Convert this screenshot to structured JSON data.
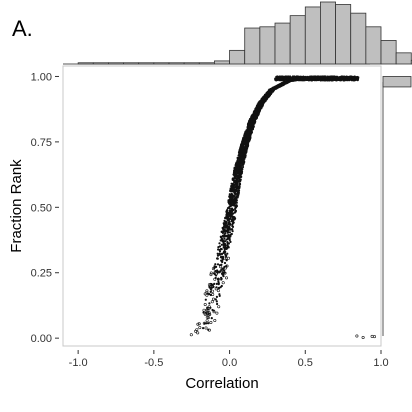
{
  "panel_label": "A.",
  "chart_data": {
    "type": "scatter",
    "xlabel": "Correlation",
    "ylabel": "Fraction Rank",
    "xlim": [
      -1.1,
      1.0
    ],
    "ylim": [
      -0.03,
      1.04
    ],
    "x_ticks": [
      -1.0,
      -0.5,
      0.0,
      0.5,
      1.0
    ],
    "x_tick_labels": [
      "-1.0",
      "-0.5",
      "0.0",
      "0.5",
      "1.0"
    ],
    "y_ticks": [
      0.0,
      0.25,
      0.5,
      0.75,
      1.0
    ],
    "y_tick_labels": [
      "0.00",
      "0.25",
      "0.50",
      "0.75",
      "1.00"
    ],
    "grid": false,
    "point_color": "#111111",
    "curve": [
      {
        "x": -0.2,
        "y": 0.01
      },
      {
        "x": -0.16,
        "y": 0.06
      },
      {
        "x": -0.12,
        "y": 0.13
      },
      {
        "x": -0.09,
        "y": 0.2
      },
      {
        "x": -0.06,
        "y": 0.28
      },
      {
        "x": -0.03,
        "y": 0.37
      },
      {
        "x": 0.0,
        "y": 0.45
      },
      {
        "x": 0.03,
        "y": 0.55
      },
      {
        "x": 0.06,
        "y": 0.65
      },
      {
        "x": 0.1,
        "y": 0.74
      },
      {
        "x": 0.15,
        "y": 0.83
      },
      {
        "x": 0.21,
        "y": 0.9
      },
      {
        "x": 0.28,
        "y": 0.95
      },
      {
        "x": 0.38,
        "y": 0.98
      },
      {
        "x": 0.5,
        "y": 0.995
      },
      {
        "x": 0.65,
        "y": 1.0
      },
      {
        "x": 0.8,
        "y": 1.0
      },
      {
        "x": 0.9,
        "y": 1.0
      }
    ],
    "top_histogram": {
      "bin_start": -1.0,
      "bin_width": 0.1,
      "bar_color": "#bfbfbf",
      "counts": [
        0.02,
        0.02,
        0.02,
        0.02,
        0.02,
        0.02,
        0.02,
        0.02,
        0.02,
        0.05,
        0.22,
        0.58,
        0.6,
        0.66,
        0.78,
        0.92,
        1.0,
        0.96,
        0.82,
        0.6,
        0.38,
        0.18,
        0.06,
        0.03,
        0.02,
        0.02,
        0.02,
        0.02,
        0.02,
        0.02
      ]
    },
    "right_histogram": {
      "bin_start": 0.96,
      "bin_width": 0.04,
      "bar_color": "#bfbfbf",
      "counts": [
        1.0
      ]
    }
  }
}
